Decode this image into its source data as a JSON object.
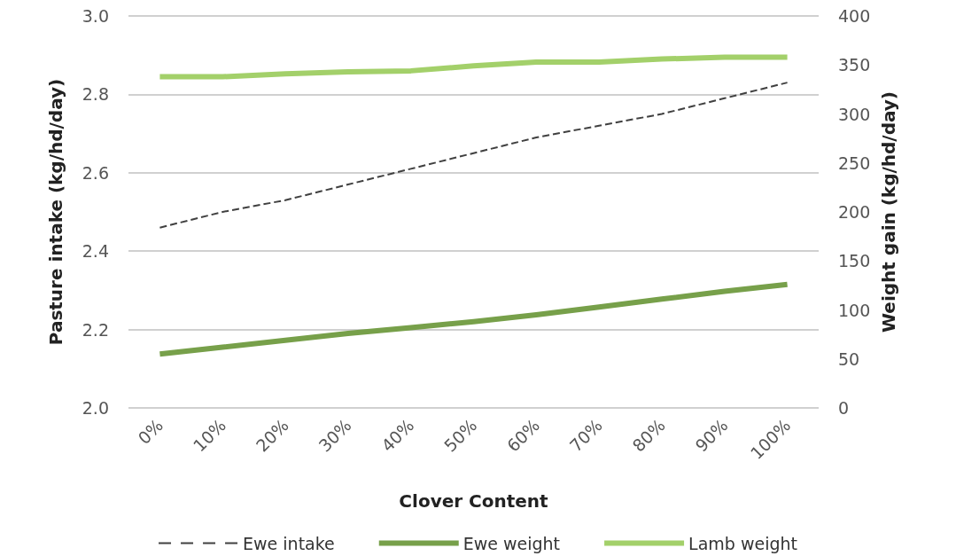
{
  "chart_data": {
    "type": "line",
    "xlabel": "Clover Content",
    "ylabel": "Pasture intake (kg/hd/day)",
    "y2label": "Weight gain (kg/hd/day)",
    "categories": [
      "0%",
      "10%",
      "20%",
      "30%",
      "40%",
      "50%",
      "60%",
      "70%",
      "80%",
      "90%",
      "100%"
    ],
    "series": [
      {
        "name": "Ewe intake",
        "color": "#404040",
        "line_style": "dashed",
        "values": [
          2.46,
          2.5,
          2.53,
          2.57,
          2.61,
          2.65,
          2.69,
          2.72,
          2.75,
          2.79,
          2.83
        ]
      },
      {
        "name": "Ewe weight",
        "color": "#77a04a",
        "axis": "y2",
        "values": [
          55,
          62,
          69,
          76,
          82,
          88,
          95,
          103,
          111,
          119,
          126
        ]
      },
      {
        "name": "Lamb weight",
        "color": "#a3d06a",
        "axis": "y2",
        "values": [
          338,
          338,
          341,
          343,
          344,
          349,
          353,
          353,
          356,
          358,
          358
        ]
      }
    ],
    "ylim": [
      2.0,
      3.0
    ],
    "yticks": [
      {
        "value": 2.0,
        "label": "2.0"
      },
      {
        "value": 2.2,
        "label": "2.2"
      },
      {
        "value": 2.4,
        "label": "2.4"
      },
      {
        "value": 2.6,
        "label": "2.6"
      },
      {
        "value": 2.8,
        "label": "2.8"
      },
      {
        "value": 3.0,
        "label": "3.0"
      }
    ],
    "y2lim": [
      0,
      400
    ],
    "y2ticks": [
      0,
      50,
      100,
      150,
      200,
      250,
      300,
      350,
      400
    ],
    "grid": "y",
    "legend": "bottom",
    "marker": "none"
  }
}
